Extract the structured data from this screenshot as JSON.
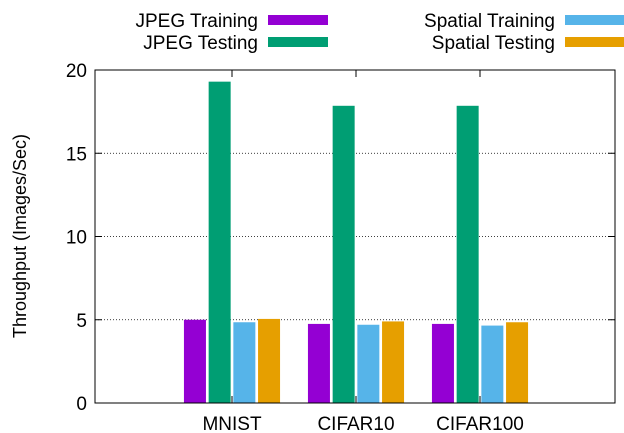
{
  "chart_data": {
    "type": "bar",
    "categories": [
      "MNIST",
      "CIFAR10",
      "CIFAR100"
    ],
    "series": [
      {
        "name": "JPEG Training",
        "color": "#9400d3",
        "values": [
          5.0,
          4.75,
          4.75
        ]
      },
      {
        "name": "JPEG Testing",
        "color": "#009e73",
        "values": [
          19.3,
          17.85,
          17.85
        ]
      },
      {
        "name": "Spatial Training",
        "color": "#56b4e9",
        "values": [
          4.85,
          4.7,
          4.65
        ]
      },
      {
        "name": "Spatial Testing",
        "color": "#e69f00",
        "values": [
          5.05,
          4.9,
          4.85
        ]
      }
    ],
    "ylabel": "Throughput (Images/Sec)",
    "xlabel": "",
    "ylim": [
      0,
      20
    ],
    "yticks": [
      0,
      5,
      10,
      15,
      20
    ],
    "grid": "y-dotted",
    "legend_placement": "top"
  }
}
